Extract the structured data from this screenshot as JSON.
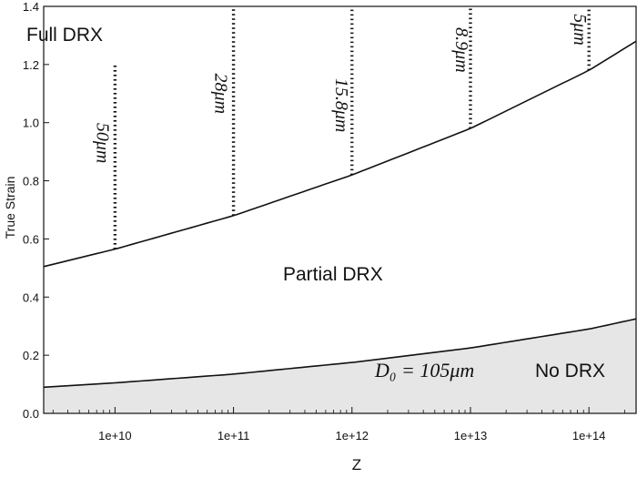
{
  "chart_data": {
    "type": "line",
    "xlabel": "Z",
    "ylabel": "True Strain",
    "x_scale": "log",
    "xlim": [
      2500000000.0,
      250000000000000.0
    ],
    "ylim": [
      0,
      1.4
    ],
    "x_ticks": [
      {
        "value": 10000000000.0,
        "label": "1e+10"
      },
      {
        "value": 100000000000.0,
        "label": "1e+11"
      },
      {
        "value": 1000000000000.0,
        "label": "1e+12"
      },
      {
        "value": 10000000000000.0,
        "label": "1e+13"
      },
      {
        "value": 100000000000000.0,
        "label": "1e+14"
      }
    ],
    "y_ticks": [
      {
        "value": 0.0,
        "label": "0.0"
      },
      {
        "value": 0.2,
        "label": "0.2"
      },
      {
        "value": 0.4,
        "label": "0.4"
      },
      {
        "value": 0.6,
        "label": "0.6"
      },
      {
        "value": 0.8,
        "label": "0.8"
      },
      {
        "value": 1.0,
        "label": "1.0"
      },
      {
        "value": 1.2,
        "label": "1.2"
      },
      {
        "value": 1.4,
        "label": "1.4"
      }
    ],
    "series": [
      {
        "x": [
          2500000000.0,
          10000000000.0,
          100000000000.0,
          1000000000000.0,
          10000000000000.0,
          100000000000000.0,
          250000000000000.0
        ],
        "y": [
          0.505,
          0.565,
          0.68,
          0.82,
          0.98,
          1.18,
          1.28
        ]
      },
      {
        "x": [
          2500000000.0,
          10000000000.0,
          100000000000.0,
          1000000000000.0,
          10000000000000.0,
          100000000000000.0,
          250000000000000.0
        ],
        "y": [
          0.09,
          0.105,
          0.135,
          0.175,
          0.225,
          0.29,
          0.325
        ]
      }
    ],
    "grain_size_lines": [
      {
        "x": 10000000000.0,
        "y_from": 0.565,
        "y_to": 1.2,
        "label": "50μm"
      },
      {
        "x": 100000000000.0,
        "y_from": 0.68,
        "y_to": 1.4,
        "label": "28μm"
      },
      {
        "x": 1000000000000.0,
        "y_from": 0.82,
        "y_to": 1.4,
        "label": "15.8μm"
      },
      {
        "x": 10000000000000.0,
        "y_from": 0.98,
        "y_to": 1.4,
        "label": "8.9μm"
      },
      {
        "x": 100000000000000.0,
        "y_from": 1.18,
        "y_to": 1.4,
        "label": "5μm"
      }
    ],
    "regions": {
      "full": "Full DRX",
      "partial": "Partial DRX",
      "none": "No DRX"
    },
    "d0_label": "D₀ = 105μm",
    "colors": {
      "line": "#111111",
      "shade": "#e6e6e6"
    },
    "grid": false
  }
}
